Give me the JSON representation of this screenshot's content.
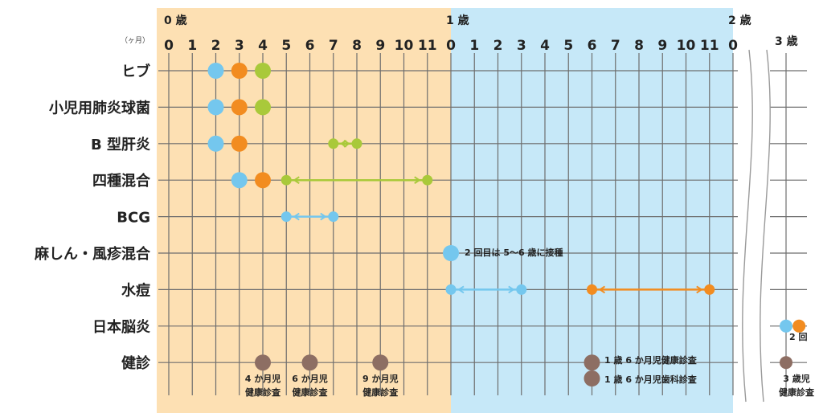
{
  "age_labels": [
    "0 歳",
    "1 歳",
    "2 歳",
    "3 歳"
  ],
  "month_unit": "（ヶ月）",
  "month_ticks_year0": [
    "0",
    "1",
    "2",
    "3",
    "4",
    "5",
    "6",
    "7",
    "8",
    "9",
    "10",
    "11"
  ],
  "month_ticks_year1": [
    "0",
    "1",
    "2",
    "3",
    "4",
    "5",
    "6",
    "7",
    "8",
    "9",
    "10",
    "11",
    "0"
  ],
  "vaccines": [
    "ヒブ",
    "小児用肺炎球菌",
    "B 型肝炎",
    "四種混合",
    "BCG",
    "麻しん・風疹混合",
    "水痘",
    "日本脳炎",
    "健診"
  ],
  "colors": {
    "year0_bg": "#fde0b3",
    "year1_bg": "#c6e8f8",
    "blue": "#74c7ee",
    "orange": "#f28c20",
    "green": "#a9c93a",
    "brown": "#8d6e63"
  },
  "annotations": {
    "measles_note": "2 回目は 5～6 歳に接種",
    "je_note": "2 回",
    "checkup_1_6_health": "1 歳 6 か月児健康診査",
    "checkup_1_6_dental": "1 歳 6 か月児歯科診査"
  },
  "checkup_captions": [
    [
      "4 か月児",
      "健康診査"
    ],
    [
      "6 か月児",
      "健康診査"
    ],
    [
      "9 か月児",
      "健康診査"
    ],
    [
      "3 歳児",
      "健康診査"
    ]
  ],
  "schedule": [
    {
      "row": 0,
      "points": [
        {
          "m": 2,
          "c": "blue"
        },
        {
          "m": 3,
          "c": "orange"
        },
        {
          "m": 4,
          "c": "green"
        }
      ]
    },
    {
      "row": 1,
      "points": [
        {
          "m": 2,
          "c": "blue"
        },
        {
          "m": 3,
          "c": "orange"
        },
        {
          "m": 4,
          "c": "green"
        }
      ]
    },
    {
      "row": 2,
      "points": [
        {
          "m": 2,
          "c": "blue"
        },
        {
          "m": 3,
          "c": "orange"
        }
      ],
      "range": {
        "from": 7,
        "to": 8,
        "c": "green"
      }
    },
    {
      "row": 3,
      "points": [
        {
          "m": 3,
          "c": "blue"
        },
        {
          "m": 4,
          "c": "orange"
        }
      ],
      "range": {
        "from": 5,
        "to": 11,
        "c": "green"
      }
    },
    {
      "row": 4,
      "range": {
        "from": 5,
        "to": 7,
        "c": "blue"
      }
    },
    {
      "row": 5,
      "points": [
        {
          "m": 12,
          "c": "blue"
        }
      ]
    },
    {
      "row": 6,
      "ranges": [
        {
          "from": 12,
          "to": 15,
          "c": "blue"
        },
        {
          "from": 18,
          "to": 23,
          "c": "orange"
        }
      ]
    },
    {
      "row": 7,
      "points": [
        {
          "m": 36,
          "c": "blue"
        },
        {
          "m": 36.6,
          "c": "orange"
        }
      ]
    },
    {
      "row": 8,
      "points": [
        {
          "m": 4,
          "c": "brown"
        },
        {
          "m": 6,
          "c": "brown"
        },
        {
          "m": 9,
          "c": "brown"
        },
        {
          "m": 18,
          "c": "brown"
        },
        {
          "m": 36,
          "c": "brown"
        }
      ]
    }
  ]
}
